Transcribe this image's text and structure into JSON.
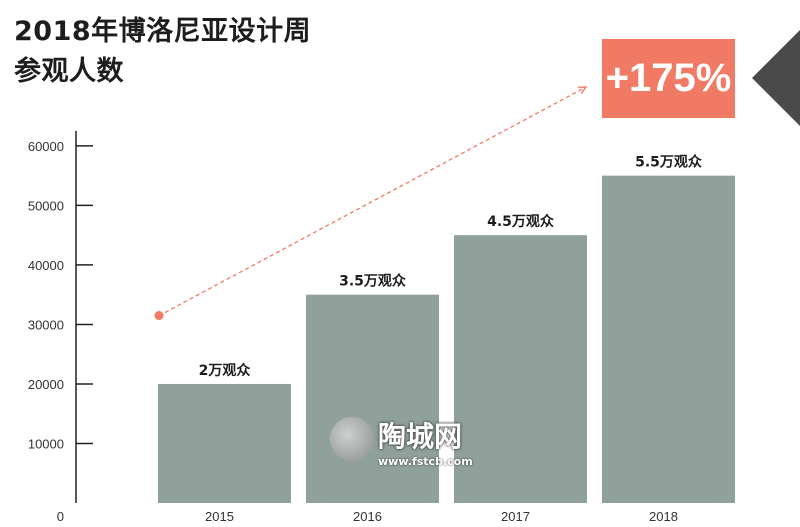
{
  "title": {
    "line1": "2018年博洛尼亚设计周",
    "line2": "参观人数"
  },
  "badge": {
    "text": "+175%",
    "color": "#f07a63"
  },
  "watermark": {
    "text": "陶城网",
    "url": "www.fstcb.com"
  },
  "colors": {
    "bar": "#8fa19a",
    "axis": "#222222",
    "accent": "#f07a63"
  },
  "chart_data": {
    "type": "bar",
    "title": "2018年博洛尼亚设计周参观人数",
    "categories": [
      "2015",
      "2016",
      "2017",
      "2018"
    ],
    "values": [
      20000,
      35000,
      45000,
      55000
    ],
    "data_labels": [
      "2万观众",
      "3.5万观众",
      "4.5万观众",
      "5.5万观众"
    ],
    "yticks": [
      0,
      10000,
      20000,
      30000,
      40000,
      50000,
      60000
    ],
    "ylim": [
      0,
      62500
    ],
    "xlabel": "",
    "ylabel": "",
    "grid": false,
    "annotation": {
      "type": "dashed-arrow",
      "from_category": "2015",
      "from_value": 31500,
      "label": "+175%"
    }
  }
}
